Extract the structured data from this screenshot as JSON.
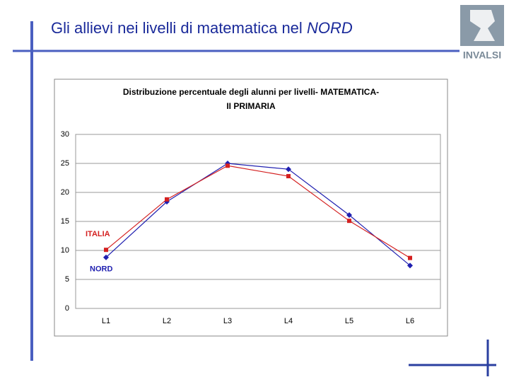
{
  "slide_title": {
    "text": "Gli allievi nei livelli di matematica nel",
    "emphasis": "NORD"
  },
  "logo": "INVALSI",
  "chart_data": {
    "type": "line",
    "title": [
      "Distribuzione percentuale degli alunni per livelli- MATEMATICA-",
      "II PRIMARIA"
    ],
    "categories": [
      "L1",
      "L2",
      "L3",
      "L4",
      "L5",
      "L6"
    ],
    "series": [
      {
        "name": "NORD",
        "color": "#1f1fb0",
        "marker": "diamond",
        "values": [
          8.8,
          18.4,
          25.0,
          24.0,
          16.1,
          7.4
        ]
      },
      {
        "name": "ITALIA",
        "color": "#d42020",
        "marker": "square",
        "values": [
          10.1,
          18.8,
          24.6,
          22.8,
          15.1,
          8.7
        ]
      }
    ],
    "ylim": [
      0,
      30
    ],
    "yticks": [
      0,
      5,
      10,
      15,
      20,
      25,
      30
    ],
    "grid": true
  }
}
